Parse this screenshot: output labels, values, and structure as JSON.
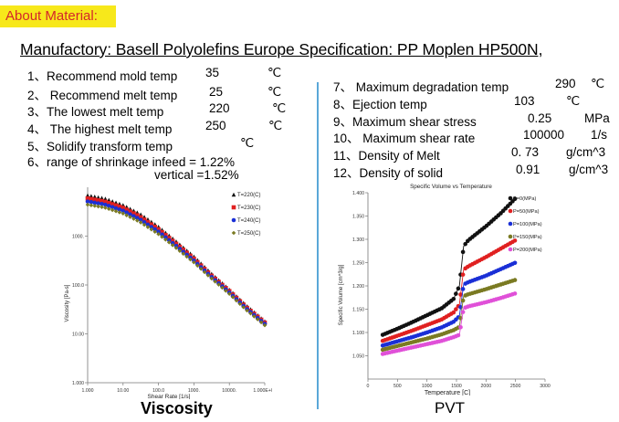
{
  "banner": "About Material:",
  "headline": "Manufactory: Basell Polyolefins Europe  Specification: PP Moplen HP500N,",
  "left_specs": [
    {
      "label": "1、Recommend mold temp",
      "value": "35",
      "unit": "℃"
    },
    {
      "label": "2、 Recommend melt temp",
      "value": "25",
      "unit": "℃"
    },
    {
      "label": "3、The lowest melt temp",
      "value": "220",
      "unit": "℃"
    },
    {
      "label": "4、 The highest melt temp",
      "value": "250",
      "unit": "℃"
    },
    {
      "label": "5、Solidify transform temp",
      "value": "",
      "unit": "℃"
    }
  ],
  "shrinkage": {
    "line1": "6、range of shrinkage infeed = 1.22%",
    "line2": "vertical =1.52%"
  },
  "right_specs": [
    {
      "label": "7、 Maximum degradation temp",
      "value": "290",
      "unit": "℃"
    },
    {
      "label": "8、Ejection temp",
      "value": "103",
      "unit": "℃"
    },
    {
      "label": "9、Maximum shear stress",
      "value": "0.25",
      "unit": "MPa"
    },
    {
      "label": "10、 Maximum shear rate",
      "value": "100000",
      "unit": "1/s"
    },
    {
      "label": "11、Density of Melt",
      "value": "0. 73",
      "unit": "g/cm^3"
    },
    {
      "label": "12、Density of solid",
      "value": "0.91",
      "unit": "g/cm^3"
    }
  ],
  "captions": {
    "viscosity": "Viscosity",
    "pvt": "PVT"
  },
  "chart_data": [
    {
      "type": "line",
      "title": "",
      "xlabel": "Shear Rate [1/s]",
      "ylabel": "Viscosity [Pa-s]",
      "x_scale": "log",
      "y_scale": "log",
      "xlim": [
        1,
        100000
      ],
      "ylim": [
        1,
        10000
      ],
      "x_tick_labels": [
        "1.000",
        "10.00",
        "100.0",
        "1000.",
        "10000.",
        "1.000E+05"
      ],
      "y_tick_labels": [
        "1000.",
        "100.0",
        "10.00",
        "1.000"
      ],
      "legend_position": "top-right",
      "x": [
        1,
        3,
        10,
        30,
        100,
        300,
        1000,
        3000,
        10000,
        30000,
        100000
      ],
      "series": [
        {
          "name": "T=220(C)",
          "color": "#111111",
          "marker": "triangle",
          "values": [
            6800,
            5900,
            4300,
            2850,
            1550,
            800,
            380,
            175,
            80,
            38,
            18
          ]
        },
        {
          "name": "T=230(C)",
          "color": "#e02020",
          "marker": "square",
          "values": [
            5900,
            5100,
            3800,
            2500,
            1380,
            720,
            345,
            160,
            75,
            35,
            17
          ]
        },
        {
          "name": "T=240(C)",
          "color": "#1a2fd6",
          "marker": "circle",
          "values": [
            5100,
            4450,
            3300,
            2200,
            1230,
            650,
            315,
            150,
            70,
            33,
            16
          ]
        },
        {
          "name": "T=250(C)",
          "color": "#7a7a22",
          "marker": "diamond",
          "values": [
            4400,
            3850,
            2900,
            1950,
            1100,
            590,
            290,
            140,
            66,
            31,
            15
          ]
        }
      ]
    },
    {
      "type": "line",
      "title": "Specific Volume vs Temperature",
      "xlabel": "Temperature [C]",
      "ylabel": "Specific Volume [cm^3/g]",
      "xlim": [
        0,
        3000
      ],
      "ylim": [
        1.0,
        1.4
      ],
      "x_tick_labels": [
        "0",
        "500",
        "1000",
        "1500",
        "2000",
        "2500",
        "3000"
      ],
      "y_tick_labels": [
        "1.400",
        "1.350",
        "1.300",
        "1.250",
        "1.200",
        "1.150",
        "1.100",
        "1.050"
      ],
      "legend_position": "top-right",
      "x": [
        250,
        500,
        750,
        1000,
        1250,
        1450,
        1550,
        1620,
        1700,
        2000,
        2250,
        2500
      ],
      "series": [
        {
          "name": "P=0(MPa)",
          "color": "#111111",
          "values": [
            1.095,
            1.108,
            1.122,
            1.137,
            1.152,
            1.172,
            1.2,
            1.285,
            1.298,
            1.328,
            1.356,
            1.388
          ]
        },
        {
          "name": "P=50(MPa)",
          "color": "#e02020",
          "values": [
            1.082,
            1.093,
            1.104,
            1.116,
            1.128,
            1.143,
            1.16,
            1.235,
            1.242,
            1.262,
            1.28,
            1.298
          ]
        },
        {
          "name": "P=100(MPa)",
          "color": "#1a2fd6",
          "values": [
            1.072,
            1.081,
            1.09,
            1.1,
            1.111,
            1.123,
            1.135,
            1.203,
            1.208,
            1.222,
            1.236,
            1.25
          ]
        },
        {
          "name": "P=150(MPa)",
          "color": "#7a7a22",
          "values": [
            1.063,
            1.071,
            1.079,
            1.087,
            1.096,
            1.105,
            1.112,
            1.178,
            1.182,
            1.193,
            1.203,
            1.213
          ]
        },
        {
          "name": "P=200(MPa)",
          "color": "#e050d8",
          "values": [
            1.054,
            1.061,
            1.068,
            1.075,
            1.082,
            1.09,
            1.095,
            1.152,
            1.156,
            1.165,
            1.174,
            1.184
          ]
        }
      ]
    }
  ]
}
